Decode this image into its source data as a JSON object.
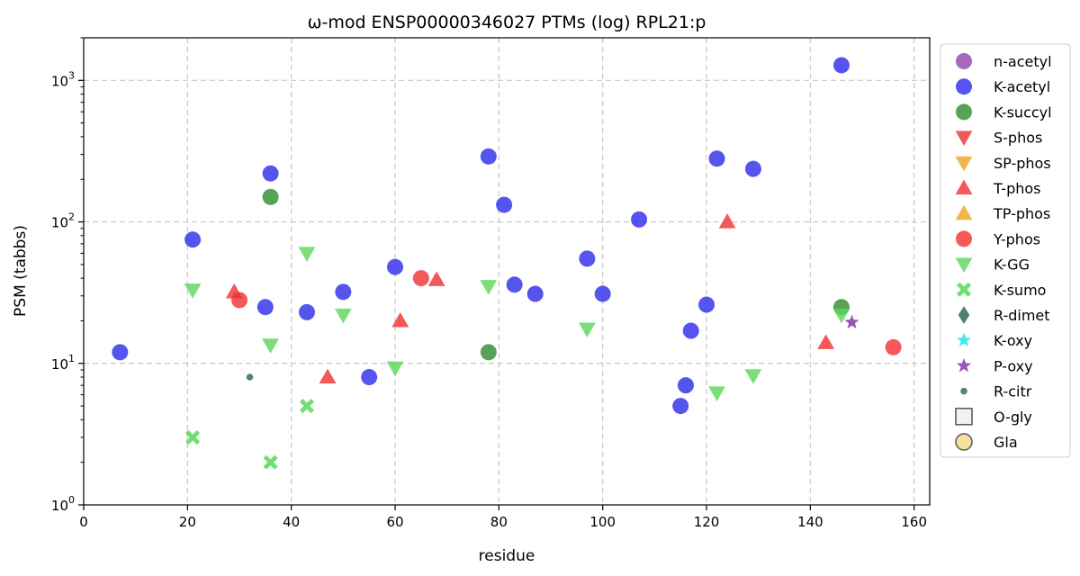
{
  "chart_data": {
    "type": "scatter",
    "title": "ω-mod ENSP00000346027 PTMs (log) RPL21:p",
    "xlabel": "residue",
    "ylabel": "PSM (tabbs)",
    "xlim": [
      0,
      163
    ],
    "ylim": [
      1,
      2000
    ],
    "yscale": "log",
    "xticks": [
      0,
      20,
      40,
      60,
      80,
      100,
      120,
      140,
      160
    ],
    "xtick_labels": [
      "0",
      "20",
      "40",
      "60",
      "80",
      "100",
      "120",
      "140",
      "160"
    ],
    "yticks": [
      1,
      10,
      100,
      1000
    ],
    "ytick_labels": [
      {
        "base": "10",
        "exp": "0"
      },
      {
        "base": "10",
        "exp": "1"
      },
      {
        "base": "10",
        "exp": "2"
      },
      {
        "base": "10",
        "exp": "3"
      }
    ],
    "grid": true,
    "legend_position": "right",
    "series": [
      {
        "name": "n-acetyl",
        "marker": "circle",
        "color": "#8e44ad",
        "points": []
      },
      {
        "name": "K-acetyl",
        "marker": "circle",
        "color": "#2b2bea",
        "points": [
          [
            7,
            12
          ],
          [
            21,
            75
          ],
          [
            35,
            25
          ],
          [
            36,
            220
          ],
          [
            43,
            23
          ],
          [
            50,
            32
          ],
          [
            55,
            8
          ],
          [
            60,
            48
          ],
          [
            78,
            290
          ],
          [
            81,
            132
          ],
          [
            83,
            36
          ],
          [
            87,
            31
          ],
          [
            97,
            55
          ],
          [
            100,
            31
          ],
          [
            107,
            104
          ],
          [
            115,
            5
          ],
          [
            116,
            7
          ],
          [
            117,
            17
          ],
          [
            120,
            26
          ],
          [
            122,
            280
          ],
          [
            129,
            237
          ],
          [
            146,
            1280
          ]
        ]
      },
      {
        "name": "K-succyl",
        "marker": "circle",
        "color": "#2e8b2e",
        "points": [
          [
            36,
            150
          ],
          [
            78,
            12
          ],
          [
            146,
            25
          ]
        ]
      },
      {
        "name": "S-phos",
        "marker": "triangle-down",
        "color": "#f03030",
        "points": []
      },
      {
        "name": "SP-phos",
        "marker": "triangle-down",
        "color": "#f0a020",
        "points": []
      },
      {
        "name": "T-phos",
        "marker": "triangle-up",
        "color": "#f03030",
        "points": [
          [
            29,
            32
          ],
          [
            47,
            8
          ],
          [
            61,
            20
          ],
          [
            68,
            39
          ],
          [
            124,
            100
          ],
          [
            143,
            14
          ]
        ]
      },
      {
        "name": "TP-phos",
        "marker": "triangle-up",
        "color": "#f0a020",
        "points": []
      },
      {
        "name": "Y-phos",
        "marker": "circle",
        "color": "#f03030",
        "points": [
          [
            30,
            28
          ],
          [
            65,
            40
          ],
          [
            156,
            13
          ]
        ]
      },
      {
        "name": "K-GG",
        "marker": "triangle-down",
        "color": "#5ad65a",
        "points": [
          [
            21,
            33
          ],
          [
            36,
            13.5
          ],
          [
            43,
            60
          ],
          [
            50,
            22
          ],
          [
            60,
            9.3
          ],
          [
            78,
            35
          ],
          [
            97,
            17.5
          ],
          [
            122,
            6.2
          ],
          [
            129,
            8.2
          ],
          [
            146,
            22
          ]
        ]
      },
      {
        "name": "K-sumo",
        "marker": "x",
        "color": "#5ad65a",
        "points": [
          [
            21,
            3
          ],
          [
            36,
            2
          ],
          [
            43,
            5
          ]
        ]
      },
      {
        "name": "R-dimet",
        "marker": "diamond",
        "color": "#2f6b50",
        "points": []
      },
      {
        "name": "K-oxy",
        "marker": "star",
        "color": "#33e8e8",
        "points": []
      },
      {
        "name": "P-oxy",
        "marker": "star",
        "color": "#8e44ad",
        "points": [
          [
            148,
            19.5
          ]
        ]
      },
      {
        "name": "R-citr",
        "marker": "small-circle",
        "color": "#3d7a5c",
        "points": [
          [
            32,
            8
          ]
        ]
      },
      {
        "name": "O-gly",
        "marker": "square-open",
        "color": "#555555",
        "points": []
      },
      {
        "name": "Gla",
        "marker": "circle-open",
        "color": "#f5e2a0",
        "points": []
      }
    ]
  }
}
